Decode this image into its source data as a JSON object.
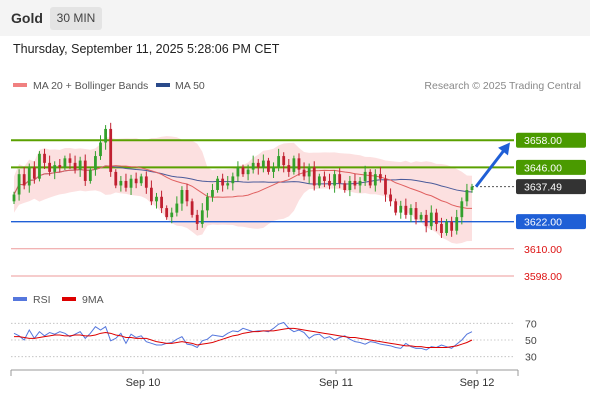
{
  "header": {
    "title": "Gold",
    "timeframe": "30 MIN"
  },
  "datetime": "Thursday, September 11, 2025 5:28:06 PM CET",
  "legend": {
    "ma20": "MA 20 + Bollinger Bands",
    "ma50": "MA 50",
    "credit": "Research © 2025 Trading Central"
  },
  "colors": {
    "up": "#33a02c",
    "down": "#c02030",
    "green_level": "#5aa000",
    "blue_level": "#1f5fd6",
    "red_level": "#ee9a9a",
    "band": "#fbd5d5",
    "ma20": "#e06060",
    "ma50": "#4a5a9a",
    "rsi": "#5577dd",
    "rsi_ma": "#dd0000"
  },
  "chart_data": {
    "type": "candlestick",
    "ylim": [
      3594,
      3678
    ],
    "x_ticks": [
      "Sep 10",
      "Sep 11",
      "Sep 12"
    ],
    "levels": [
      {
        "value": 3658.0,
        "label": "3658.00",
        "kind": "resistance"
      },
      {
        "value": 3646.0,
        "label": "3646.00",
        "kind": "resistance"
      },
      {
        "value": 3637.49,
        "label": "3637.49",
        "kind": "last"
      },
      {
        "value": 3622.0,
        "label": "3622.00",
        "kind": "pivot"
      },
      {
        "value": 3610.0,
        "label": "3610.00",
        "kind": "support"
      },
      {
        "value": 3598.0,
        "label": "3598.00",
        "kind": "support"
      }
    ],
    "arrow": {
      "from": 3637.5,
      "to": 3657
    },
    "close": [
      3634,
      3643,
      3638,
      3646,
      3641,
      3652,
      3648,
      3644,
      3647,
      3646,
      3650,
      3648,
      3645,
      3649,
      3640,
      3645,
      3651,
      3657,
      3663,
      3644,
      3638,
      3640,
      3637,
      3641,
      3639,
      3642,
      3637,
      3631,
      3633,
      3628,
      3624,
      3626,
      3630,
      3636,
      3631,
      3625,
      3621,
      3627,
      3633,
      3636,
      3641,
      3638,
      3639,
      3642,
      3646,
      3643,
      3645,
      3648,
      3646,
      3649,
      3644,
      3646,
      3651,
      3647,
      3644,
      3650,
      3645,
      3642,
      3646,
      3638,
      3642,
      3640,
      3638,
      3643,
      3639,
      3636,
      3640,
      3638,
      3640,
      3644,
      3638,
      3643,
      3641,
      3634,
      3631,
      3626,
      3629,
      3625,
      3628,
      3623,
      3625,
      3620,
      3626,
      3621,
      3617,
      3622,
      3618,
      3624,
      3631,
      3636,
      3637.5
    ],
    "rsi": {
      "ylim": [
        20,
        80
      ],
      "ticks": [
        70,
        50,
        30
      ],
      "overbought": 70,
      "oversold": 30,
      "rsi": [
        58,
        55,
        50,
        62,
        52,
        60,
        55,
        59,
        57,
        60,
        58,
        54,
        57,
        60,
        52,
        58,
        66,
        62,
        66,
        49,
        52,
        58,
        46,
        57,
        53,
        55,
        48,
        46,
        44,
        44,
        46,
        47,
        51,
        54,
        45,
        44,
        41,
        49,
        51,
        56,
        55,
        54,
        58,
        61,
        60,
        64,
        62,
        60,
        61,
        61,
        60,
        64,
        69,
        71,
        64,
        60,
        62,
        59,
        52,
        56,
        57,
        52,
        54,
        50,
        53,
        55,
        51,
        48,
        47,
        45,
        48,
        47,
        45,
        44,
        43,
        41,
        40,
        46,
        42,
        40,
        40,
        38,
        42,
        41,
        44,
        42,
        40,
        45,
        50,
        57,
        60
      ],
      "ma": [
        54,
        54,
        53,
        52,
        52,
        53,
        54,
        55,
        56,
        56,
        55,
        55,
        56,
        56,
        55,
        55,
        56,
        58,
        59,
        58,
        56,
        55,
        53,
        53,
        52,
        52,
        52,
        50,
        48,
        47,
        46,
        46,
        47,
        48,
        47,
        46,
        44,
        45,
        46,
        47,
        49,
        51,
        53,
        55,
        56,
        58,
        59,
        60,
        60,
        61,
        61,
        61,
        62,
        63,
        64,
        64,
        63,
        62,
        61,
        60,
        59,
        58,
        57,
        56,
        55,
        54,
        53,
        53,
        52,
        51,
        50,
        49,
        48,
        47,
        46,
        45,
        44,
        43,
        43,
        42,
        42,
        41,
        41,
        41,
        41,
        41,
        42,
        43,
        45,
        47,
        50
      ]
    },
    "series": [
      {
        "name": "RSI"
      },
      {
        "name": "9MA"
      }
    ]
  }
}
